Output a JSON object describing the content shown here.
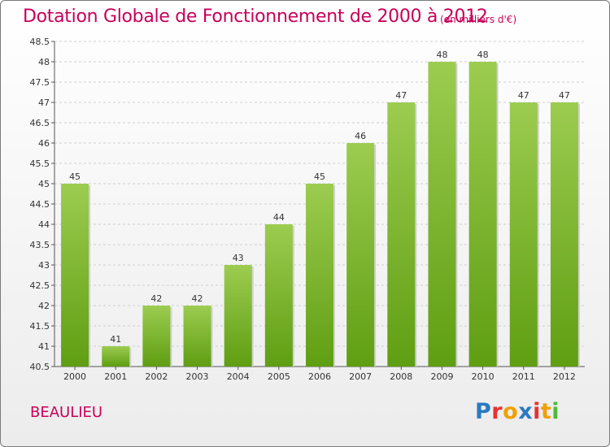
{
  "header": {
    "title": "Dotation Globale de Fonctionnement de 2000 à 2012",
    "subtitle": "(en milliers d'€)"
  },
  "footer": {
    "town": "BEAULIEU",
    "logo": {
      "letters": [
        "P",
        "r",
        "o",
        "x",
        "i",
        "t",
        "i"
      ],
      "colors": [
        "#2a7ac0",
        "#e8312f",
        "#f0a000",
        "#2a7ac0",
        "#e8312f",
        "#f0a000",
        "#4fb93b"
      ]
    }
  },
  "chart_data": {
    "type": "bar",
    "categories": [
      "2000",
      "2001",
      "2002",
      "2003",
      "2004",
      "2005",
      "2006",
      "2007",
      "2008",
      "2009",
      "2010",
      "2011",
      "2012"
    ],
    "values": [
      45,
      41,
      42,
      42,
      43,
      44,
      45,
      46,
      47,
      48,
      48,
      47,
      47
    ],
    "ylim": [
      40.5,
      48.5
    ],
    "yticks": [
      "40.5",
      "41",
      "41.5",
      "42",
      "42.5",
      "43",
      "43.5",
      "44",
      "44.5",
      "45",
      "45.5",
      "46",
      "46.5",
      "47",
      "47.5",
      "48",
      "48.5"
    ],
    "grid": "horizontal-dashed",
    "bar_color_top": "#9ccc50",
    "bar_color_bottom": "#5f9e12"
  }
}
